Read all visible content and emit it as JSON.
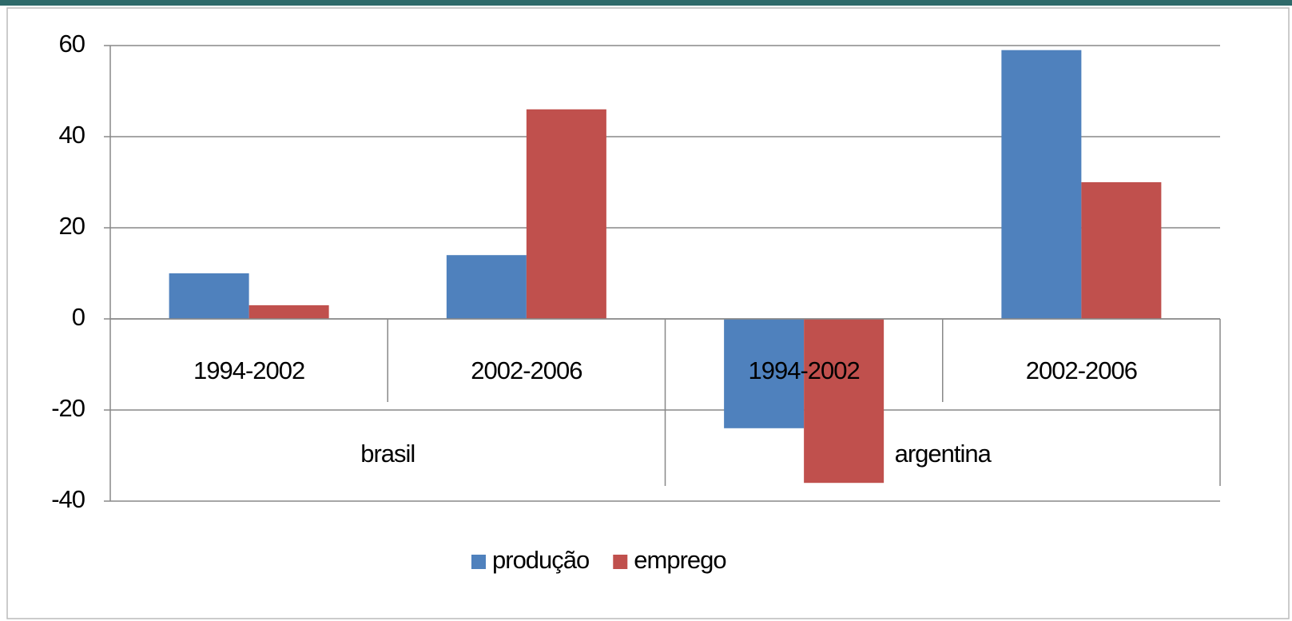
{
  "chart_data": {
    "type": "bar",
    "groups": [
      {
        "name": "brasil",
        "categories": [
          "1994-2002",
          "2002-2006"
        ]
      },
      {
        "name": "argentina",
        "categories": [
          "1994-2002",
          "2002-2006"
        ]
      }
    ],
    "series": [
      {
        "name": "produção",
        "color": "#4f81bd",
        "values": [
          10,
          14,
          -24,
          59
        ]
      },
      {
        "name": "emprego",
        "color": "#c0504d",
        "values": [
          3,
          46,
          -36,
          30
        ]
      }
    ],
    "ylim": [
      -40,
      60
    ],
    "yticks": [
      -40,
      -20,
      0,
      20,
      40,
      60
    ],
    "grid": true,
    "legend": "bottom"
  }
}
